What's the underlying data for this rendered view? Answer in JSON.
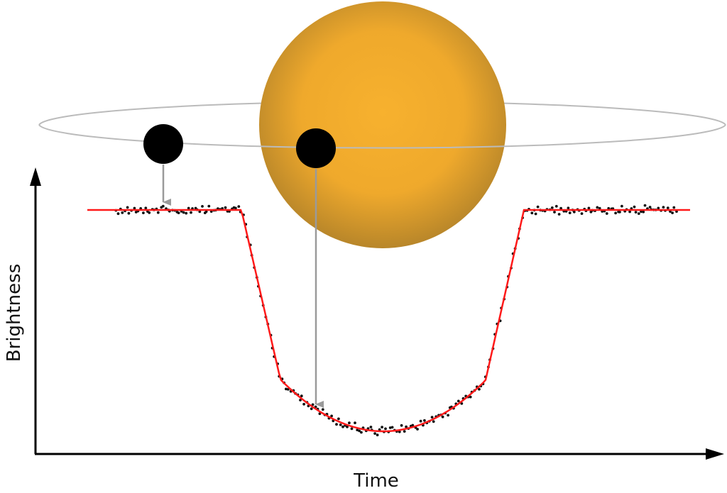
{
  "axes": {
    "x_label": "Time",
    "y_label": "Brightness"
  },
  "colors": {
    "star_center": "#f7b12e",
    "star_edge": "#b8862a",
    "planet": "#000000",
    "orbit": "#bbbbbb",
    "arrow": "#9a9a9a",
    "model_curve": "#ff1a1a",
    "data_points": "#111111",
    "axis": "#000000"
  },
  "icons": {
    "star": "star-disk",
    "planet_out_of_transit": "planet-disk",
    "planet_in_transit": "planet-disk"
  }
}
